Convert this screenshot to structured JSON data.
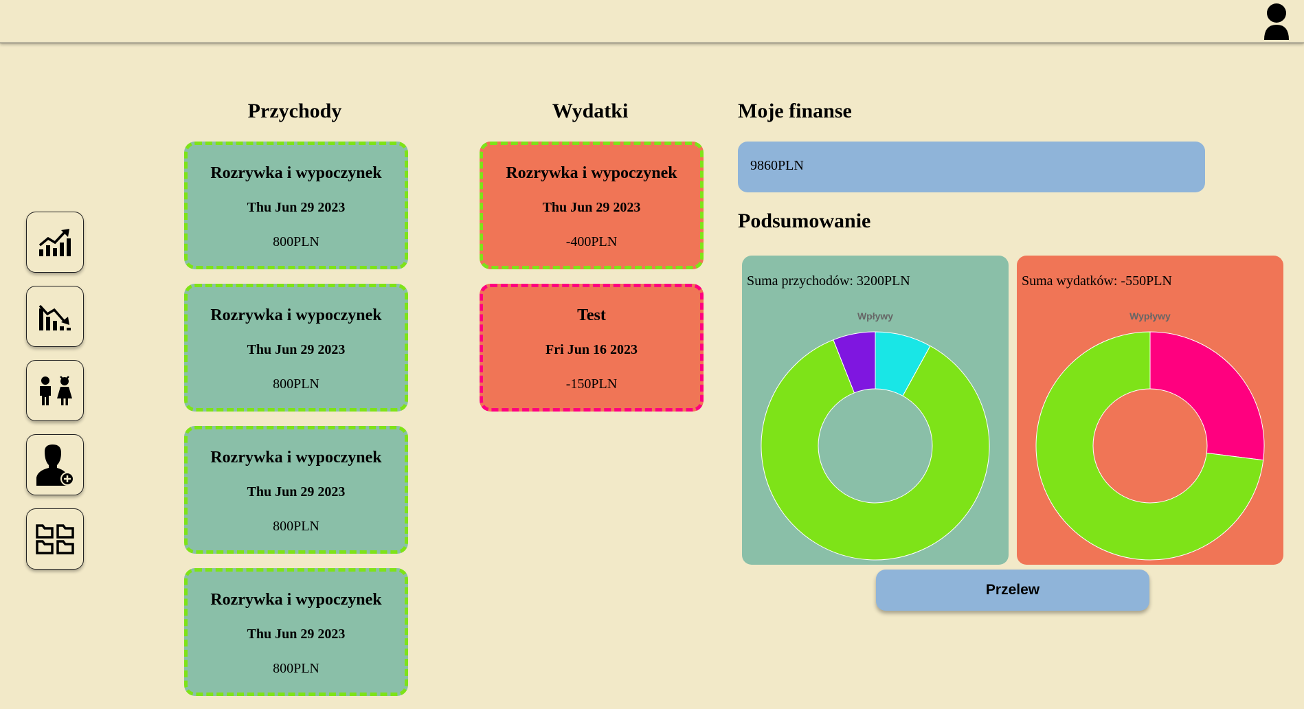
{
  "header": {
    "user_icon": "user-avatar-icon"
  },
  "sidebar": {
    "items": [
      {
        "name": "income-chart",
        "icon": "chart-up-icon"
      },
      {
        "name": "expense-chart",
        "icon": "chart-down-icon"
      },
      {
        "name": "family",
        "icon": "family-icon"
      },
      {
        "name": "add-user",
        "icon": "user-add-icon"
      },
      {
        "name": "categories",
        "icon": "folders-icon"
      }
    ]
  },
  "income": {
    "title": "Przychody",
    "items": [
      {
        "name": "Rozrywka i wypoczynek",
        "date": "Thu Jun 29 2023",
        "amount": "800PLN"
      },
      {
        "name": "Rozrywka i wypoczynek",
        "date": "Thu Jun 29 2023",
        "amount": "800PLN"
      },
      {
        "name": "Rozrywka i wypoczynek",
        "date": "Thu Jun 29 2023",
        "amount": "800PLN"
      },
      {
        "name": "Rozrywka i wypoczynek",
        "date": "Thu Jun 29 2023",
        "amount": "800PLN"
      }
    ]
  },
  "expenses": {
    "title": "Wydatki",
    "items": [
      {
        "name": "Rozrywka i wypoczynek",
        "date": "Thu Jun 29 2023",
        "amount": "-400PLN",
        "border_color": "#7ee318"
      },
      {
        "name": "Test",
        "date": "Fri Jun 16 2023",
        "amount": "-150PLN",
        "border_color": "#ff007f"
      }
    ]
  },
  "finances": {
    "title": "Moje finanse",
    "balance": "9860PLN"
  },
  "summary": {
    "title": "Podsumowanie",
    "income_sum": "Suma przychodów: 3200PLN",
    "expense_sum": "Suma wydatków: -550PLN",
    "transfer_label": "Przelew"
  },
  "colors": {
    "background": "#f2e9c8",
    "income_card": "#8abfa8",
    "expense_card": "#f07556",
    "accent_blue": "#8fb4d9",
    "green": "#7ee318",
    "pink": "#ff007f",
    "purple": "#7f16e0",
    "cyan": "#19e6e6"
  },
  "chart_data": [
    {
      "type": "pie",
      "title": "Wpływy",
      "slices": [
        {
          "color": "#19e6e6",
          "value": 8
        },
        {
          "color": "#7ee318",
          "value": 86
        },
        {
          "color": "#7f16e0",
          "value": 6
        }
      ]
    },
    {
      "type": "pie",
      "title": "Wypływy",
      "slices": [
        {
          "color": "#ff007f",
          "value": 27
        },
        {
          "color": "#7ee318",
          "value": 73
        }
      ]
    }
  ]
}
